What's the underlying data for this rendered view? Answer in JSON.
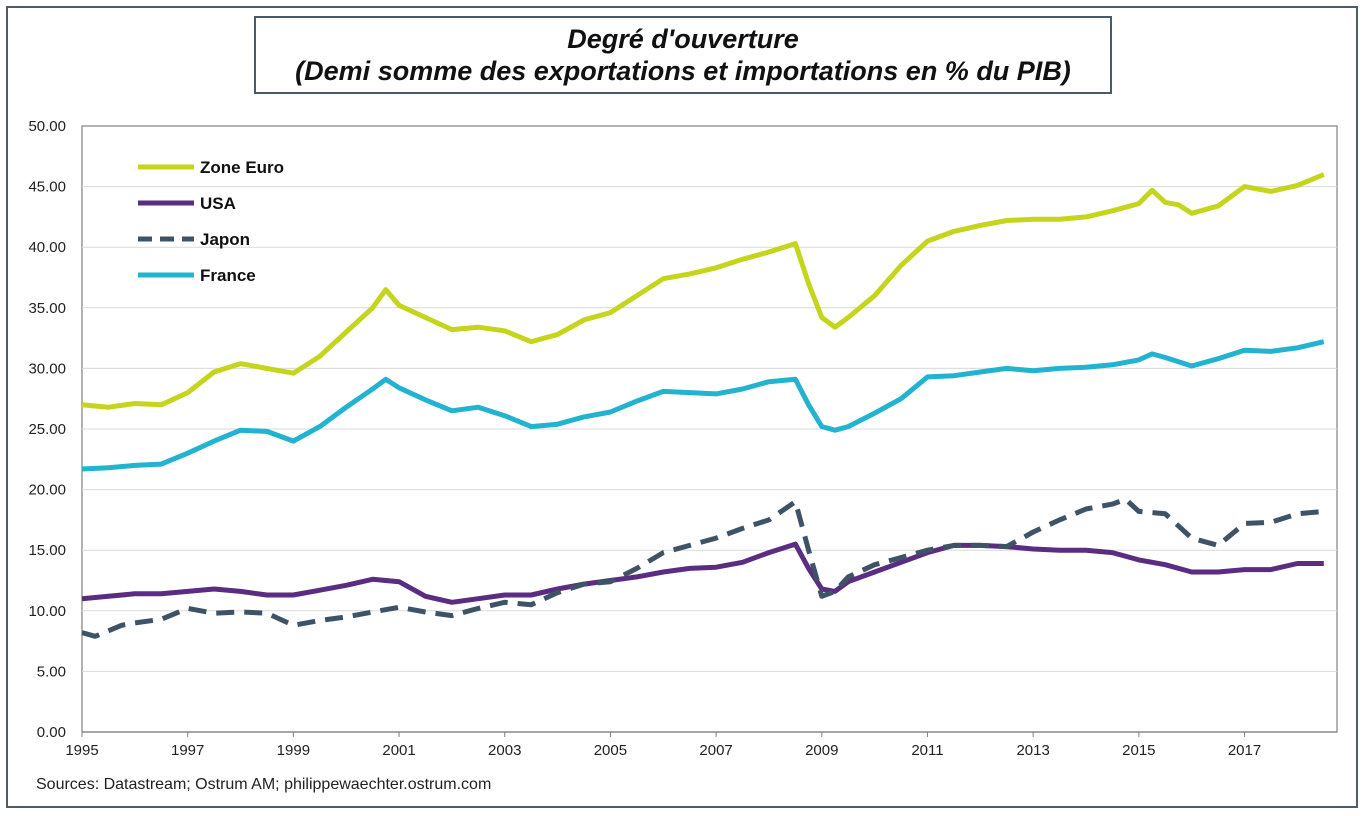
{
  "title_line1": "Degré d'ouverture",
  "title_line2": "(Demi somme des exportations et importations en % du PIB)",
  "source": "Sources: Datastream; Ostrum AM;  philippewaechter.ostrum.com",
  "chart_data": {
    "type": "line",
    "title": "Degré d'ouverture (Demi somme des exportations et importations en % du PIB)",
    "xlabel": "",
    "ylabel": "",
    "xlim": [
      1995,
      2018.75
    ],
    "ylim": [
      0,
      50
    ],
    "yticks": [
      "0.00",
      "5.00",
      "10.00",
      "15.00",
      "20.00",
      "25.00",
      "30.00",
      "35.00",
      "40.00",
      "45.00",
      "50.00"
    ],
    "xticks": [
      "1995",
      "1997",
      "1999",
      "2001",
      "2003",
      "2005",
      "2007",
      "2009",
      "2011",
      "2013",
      "2015",
      "2017"
    ],
    "grid": true,
    "legend_position": "top-left",
    "series": [
      {
        "name": "Zone Euro",
        "color": "#c4d51c",
        "dash": "solid",
        "points": [
          [
            1995,
            27.0
          ],
          [
            1995.5,
            26.8
          ],
          [
            1996,
            27.1
          ],
          [
            1996.5,
            27.0
          ],
          [
            1997,
            28.0
          ],
          [
            1997.5,
            29.7
          ],
          [
            1998,
            30.4
          ],
          [
            1998.5,
            30.0
          ],
          [
            1999,
            29.6
          ],
          [
            1999.5,
            31.0
          ],
          [
            2000,
            33.0
          ],
          [
            2000.5,
            35.0
          ],
          [
            2000.75,
            36.5
          ],
          [
            2001,
            35.2
          ],
          [
            2001.5,
            34.2
          ],
          [
            2002,
            33.2
          ],
          [
            2002.5,
            33.4
          ],
          [
            2003,
            33.1
          ],
          [
            2003.5,
            32.2
          ],
          [
            2004,
            32.8
          ],
          [
            2004.5,
            34.0
          ],
          [
            2005,
            34.6
          ],
          [
            2005.5,
            36.0
          ],
          [
            2006,
            37.4
          ],
          [
            2006.5,
            37.8
          ],
          [
            2007,
            38.3
          ],
          [
            2007.5,
            39.0
          ],
          [
            2008,
            39.6
          ],
          [
            2008.5,
            40.3
          ],
          [
            2008.75,
            37.0
          ],
          [
            2009,
            34.2
          ],
          [
            2009.25,
            33.4
          ],
          [
            2009.5,
            34.2
          ],
          [
            2010,
            36.0
          ],
          [
            2010.5,
            38.5
          ],
          [
            2011,
            40.5
          ],
          [
            2011.5,
            41.3
          ],
          [
            2012,
            41.8
          ],
          [
            2012.5,
            42.2
          ],
          [
            2013,
            42.3
          ],
          [
            2013.5,
            42.3
          ],
          [
            2014,
            42.5
          ],
          [
            2014.5,
            43.0
          ],
          [
            2015,
            43.6
          ],
          [
            2015.25,
            44.7
          ],
          [
            2015.5,
            43.7
          ],
          [
            2015.75,
            43.5
          ],
          [
            2016,
            42.8
          ],
          [
            2016.5,
            43.4
          ],
          [
            2017,
            45.0
          ],
          [
            2017.5,
            44.6
          ],
          [
            2018,
            45.1
          ],
          [
            2018.5,
            46.0
          ]
        ]
      },
      {
        "name": "USA",
        "color": "#5a2d82",
        "dash": "solid",
        "points": [
          [
            1995,
            11.0
          ],
          [
            1995.5,
            11.2
          ],
          [
            1996,
            11.4
          ],
          [
            1996.5,
            11.4
          ],
          [
            1997,
            11.6
          ],
          [
            1997.5,
            11.8
          ],
          [
            1998,
            11.6
          ],
          [
            1998.5,
            11.3
          ],
          [
            1999,
            11.3
          ],
          [
            1999.5,
            11.7
          ],
          [
            2000,
            12.1
          ],
          [
            2000.5,
            12.6
          ],
          [
            2001,
            12.4
          ],
          [
            2001.5,
            11.2
          ],
          [
            2002,
            10.7
          ],
          [
            2002.5,
            11.0
          ],
          [
            2003,
            11.3
          ],
          [
            2003.5,
            11.3
          ],
          [
            2004,
            11.8
          ],
          [
            2004.5,
            12.2
          ],
          [
            2005,
            12.5
          ],
          [
            2005.5,
            12.8
          ],
          [
            2006,
            13.2
          ],
          [
            2006.5,
            13.5
          ],
          [
            2007,
            13.6
          ],
          [
            2007.5,
            14.0
          ],
          [
            2008,
            14.8
          ],
          [
            2008.5,
            15.5
          ],
          [
            2008.75,
            13.5
          ],
          [
            2009,
            11.8
          ],
          [
            2009.25,
            11.6
          ],
          [
            2009.5,
            12.4
          ],
          [
            2010,
            13.2
          ],
          [
            2010.5,
            14.0
          ],
          [
            2011,
            14.8
          ],
          [
            2011.5,
            15.4
          ],
          [
            2012,
            15.4
          ],
          [
            2012.5,
            15.3
          ],
          [
            2013,
            15.1
          ],
          [
            2013.5,
            15.0
          ],
          [
            2014,
            15.0
          ],
          [
            2014.5,
            14.8
          ],
          [
            2015,
            14.2
          ],
          [
            2015.5,
            13.8
          ],
          [
            2016,
            13.2
          ],
          [
            2016.5,
            13.2
          ],
          [
            2017,
            13.4
          ],
          [
            2017.5,
            13.4
          ],
          [
            2018,
            13.9
          ],
          [
            2018.5,
            13.9
          ]
        ]
      },
      {
        "name": "Japon",
        "color": "#3f5366",
        "dash": "dashed",
        "points": [
          [
            1995,
            8.2
          ],
          [
            1995.25,
            7.9
          ],
          [
            1995.75,
            8.8
          ],
          [
            1996,
            9.0
          ],
          [
            1996.5,
            9.3
          ],
          [
            1997,
            10.2
          ],
          [
            1997.5,
            9.8
          ],
          [
            1998,
            9.9
          ],
          [
            1998.5,
            9.8
          ],
          [
            1999,
            8.8
          ],
          [
            1999.5,
            9.2
          ],
          [
            2000,
            9.5
          ],
          [
            2000.5,
            9.9
          ],
          [
            2001,
            10.3
          ],
          [
            2001.5,
            9.9
          ],
          [
            2002,
            9.6
          ],
          [
            2002.5,
            10.2
          ],
          [
            2003,
            10.7
          ],
          [
            2003.5,
            10.5
          ],
          [
            2004,
            11.5
          ],
          [
            2004.5,
            12.2
          ],
          [
            2005,
            12.4
          ],
          [
            2005.5,
            13.5
          ],
          [
            2006,
            14.8
          ],
          [
            2006.5,
            15.4
          ],
          [
            2007,
            16.0
          ],
          [
            2007.5,
            16.8
          ],
          [
            2008,
            17.5
          ],
          [
            2008.5,
            19.0
          ],
          [
            2008.75,
            15.0
          ],
          [
            2009,
            11.2
          ],
          [
            2009.25,
            11.6
          ],
          [
            2009.5,
            12.8
          ],
          [
            2010,
            13.8
          ],
          [
            2010.5,
            14.4
          ],
          [
            2011,
            15.0
          ],
          [
            2011.5,
            15.4
          ],
          [
            2012,
            15.4
          ],
          [
            2012.5,
            15.3
          ],
          [
            2013,
            16.5
          ],
          [
            2013.5,
            17.5
          ],
          [
            2014,
            18.4
          ],
          [
            2014.5,
            18.8
          ],
          [
            2014.75,
            19.2
          ],
          [
            2015,
            18.2
          ],
          [
            2015.5,
            18.0
          ],
          [
            2016,
            16.0
          ],
          [
            2016.5,
            15.4
          ],
          [
            2017,
            17.2
          ],
          [
            2017.5,
            17.3
          ],
          [
            2018,
            18.0
          ],
          [
            2018.5,
            18.2
          ]
        ]
      },
      {
        "name": "France",
        "color": "#21b3cf",
        "dash": "solid",
        "points": [
          [
            1995,
            21.7
          ],
          [
            1995.5,
            21.8
          ],
          [
            1996,
            22.0
          ],
          [
            1996.5,
            22.1
          ],
          [
            1997,
            23.0
          ],
          [
            1997.5,
            24.0
          ],
          [
            1998,
            24.9
          ],
          [
            1998.5,
            24.8
          ],
          [
            1999,
            24.0
          ],
          [
            1999.5,
            25.2
          ],
          [
            2000,
            26.8
          ],
          [
            2000.5,
            28.3
          ],
          [
            2000.75,
            29.1
          ],
          [
            2001,
            28.4
          ],
          [
            2001.5,
            27.4
          ],
          [
            2002,
            26.5
          ],
          [
            2002.5,
            26.8
          ],
          [
            2003,
            26.1
          ],
          [
            2003.5,
            25.2
          ],
          [
            2004,
            25.4
          ],
          [
            2004.5,
            26.0
          ],
          [
            2005,
            26.4
          ],
          [
            2005.5,
            27.3
          ],
          [
            2006,
            28.1
          ],
          [
            2006.5,
            28.0
          ],
          [
            2007,
            27.9
          ],
          [
            2007.5,
            28.3
          ],
          [
            2008,
            28.9
          ],
          [
            2008.5,
            29.1
          ],
          [
            2008.75,
            27.0
          ],
          [
            2009,
            25.2
          ],
          [
            2009.25,
            24.9
          ],
          [
            2009.5,
            25.2
          ],
          [
            2010,
            26.3
          ],
          [
            2010.5,
            27.5
          ],
          [
            2011,
            29.3
          ],
          [
            2011.5,
            29.4
          ],
          [
            2012,
            29.7
          ],
          [
            2012.5,
            30.0
          ],
          [
            2013,
            29.8
          ],
          [
            2013.5,
            30.0
          ],
          [
            2014,
            30.1
          ],
          [
            2014.5,
            30.3
          ],
          [
            2015,
            30.7
          ],
          [
            2015.25,
            31.2
          ],
          [
            2015.5,
            30.9
          ],
          [
            2016,
            30.2
          ],
          [
            2016.5,
            30.8
          ],
          [
            2017,
            31.5
          ],
          [
            2017.5,
            31.4
          ],
          [
            2018,
            31.7
          ],
          [
            2018.5,
            32.2
          ]
        ]
      }
    ]
  }
}
